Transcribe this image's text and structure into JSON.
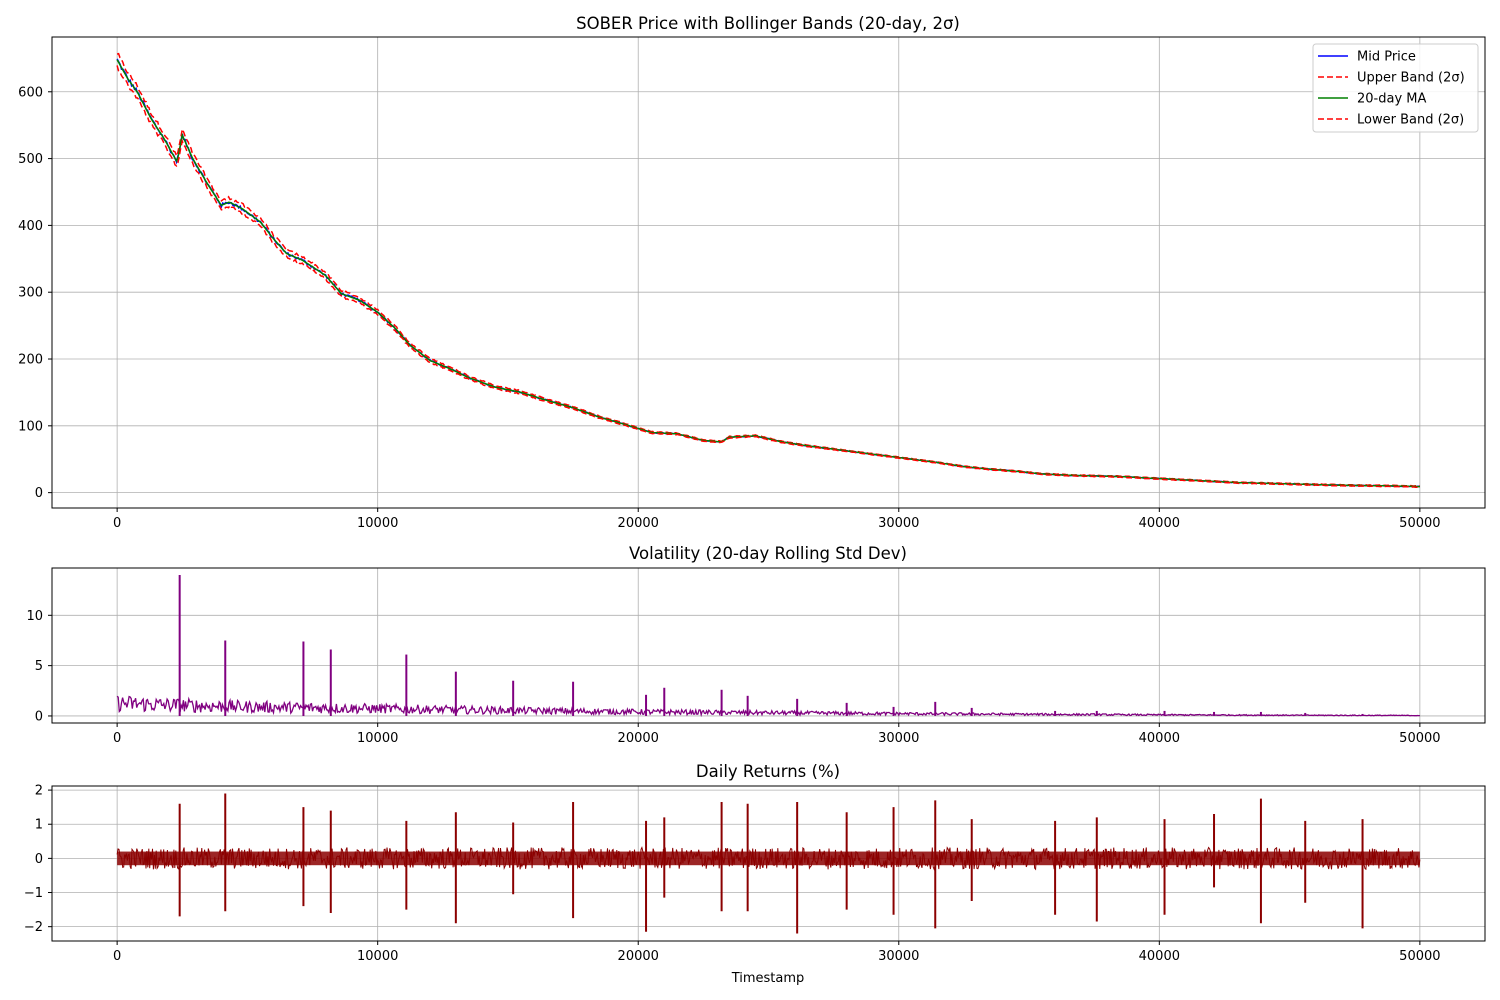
{
  "figure": {
    "xlabel": "Timestamp"
  },
  "chart_data": [
    {
      "type": "line",
      "title": "SOBER Price with Bollinger Bands (20-day, 2σ)",
      "xlabel": "",
      "ylabel": "",
      "xlim": [
        -2500,
        52500
      ],
      "ylim": [
        -23,
        682
      ],
      "grid": true,
      "legend_position": "top-right",
      "x_ticks": [
        0,
        10000,
        20000,
        30000,
        40000,
        50000
      ],
      "y_ticks": [
        0,
        100,
        200,
        300,
        400,
        500,
        600
      ],
      "trend_points": {
        "x": [
          0,
          400,
          800,
          1300,
          1800,
          2300,
          2500,
          2900,
          3500,
          4000,
          4300,
          4800,
          5500,
          6000,
          6500,
          7100,
          7500,
          8000,
          8600,
          9300,
          10000,
          10700,
          11200,
          12000,
          12800,
          13500,
          14500,
          15500,
          16500,
          17500,
          18500,
          19500,
          20500,
          21500,
          22500,
          23200,
          23500,
          24500,
          25500,
          26500,
          27500,
          28500,
          29500,
          30500,
          31500,
          32500,
          33500,
          34500,
          35500,
          36500,
          37500,
          38500,
          40000,
          41000,
          42000,
          43000,
          44000,
          45000,
          46000,
          47000,
          48000,
          49000,
          50000
        ],
        "y": [
          648,
          620,
          598,
          560,
          530,
          495,
          535,
          500,
          460,
          430,
          435,
          425,
          405,
          380,
          358,
          348,
          338,
          325,
          298,
          288,
          270,
          245,
          222,
          198,
          185,
          172,
          158,
          150,
          138,
          127,
          113,
          102,
          90,
          88,
          78,
          76,
          83,
          85,
          76,
          70,
          65,
          60,
          55,
          50,
          45,
          39,
          35,
          32,
          28,
          26,
          25,
          24,
          21,
          19,
          17,
          15,
          14,
          13,
          12,
          11,
          10.5,
          10,
          9
        ]
      },
      "series": [
        {
          "name": "Mid Price",
          "color": "#0000ff",
          "style": "solid"
        },
        {
          "name": "Upper Band (2σ)",
          "color": "#ff0000",
          "style": "dashed"
        },
        {
          "name": "20-day MA",
          "color": "#008000",
          "style": "solid"
        },
        {
          "name": "Lower Band (2σ)",
          "color": "#ff0000",
          "style": "dashed"
        }
      ]
    },
    {
      "type": "line",
      "title": "Volatility (20-day Rolling Std Dev)",
      "xlabel": "",
      "ylabel": "",
      "xlim": [
        -2500,
        52500
      ],
      "ylim": [
        -0.7,
        14.7
      ],
      "grid": true,
      "x_ticks": [
        0,
        10000,
        20000,
        30000,
        40000,
        50000
      ],
      "y_ticks": [
        0,
        5,
        10
      ],
      "color": "#800080",
      "baseline": {
        "x": [
          0,
          2000,
          5000,
          10000,
          15000,
          20000,
          25000,
          30000,
          35000,
          40000,
          45000,
          50000
        ],
        "y": [
          1.4,
          1.2,
          1.0,
          0.8,
          0.6,
          0.45,
          0.35,
          0.25,
          0.18,
          0.12,
          0.08,
          0.05
        ]
      },
      "spikes": {
        "x": [
          2400,
          4150,
          7150,
          8200,
          11100,
          13000,
          15200,
          17500,
          20300,
          21000,
          23200,
          24200,
          26100,
          28000,
          29800,
          31400,
          32800,
          36000,
          37600,
          40200,
          42100,
          43900,
          45600,
          47800
        ],
        "y": [
          14.0,
          7.5,
          7.4,
          6.6,
          6.1,
          4.4,
          3.5,
          3.4,
          2.1,
          2.8,
          2.6,
          2.0,
          1.7,
          1.3,
          0.9,
          1.4,
          0.8,
          0.5,
          0.5,
          0.5,
          0.4,
          0.4,
          0.3,
          0.2
        ]
      }
    },
    {
      "type": "line",
      "title": "Daily Returns (%)",
      "xlabel": "Timestamp",
      "ylabel": "",
      "xlim": [
        -2500,
        52500
      ],
      "ylim": [
        -2.42,
        2.12
      ],
      "grid": true,
      "x_ticks": [
        0,
        10000,
        20000,
        30000,
        40000,
        50000
      ],
      "y_ticks": [
        -2,
        -1,
        0,
        1,
        2
      ],
      "color": "#8b0000",
      "noise_amplitude": 0.2,
      "spikes": {
        "x": [
          2400,
          4150,
          7150,
          8200,
          11100,
          13000,
          15200,
          17500,
          20300,
          21000,
          23200,
          24200,
          26100,
          28000,
          29800,
          31400,
          32800,
          36000,
          37600,
          40200,
          42100,
          43900,
          45600,
          47800
        ],
        "up": [
          1.6,
          1.9,
          1.5,
          1.4,
          1.1,
          1.35,
          1.05,
          1.65,
          1.1,
          1.2,
          1.65,
          1.6,
          1.65,
          1.35,
          1.5,
          1.7,
          1.15,
          1.1,
          1.2,
          1.15,
          1.3,
          1.75,
          1.1,
          1.15
        ],
        "down": [
          -1.7,
          -1.55,
          -1.4,
          -1.6,
          -1.5,
          -1.9,
          -1.05,
          -1.75,
          -2.15,
          -1.15,
          -1.55,
          -1.55,
          -2.2,
          -1.5,
          -1.65,
          -2.05,
          -1.25,
          -1.65,
          -1.85,
          -1.65,
          -0.85,
          -1.9,
          -1.3,
          -2.05
        ]
      }
    }
  ]
}
